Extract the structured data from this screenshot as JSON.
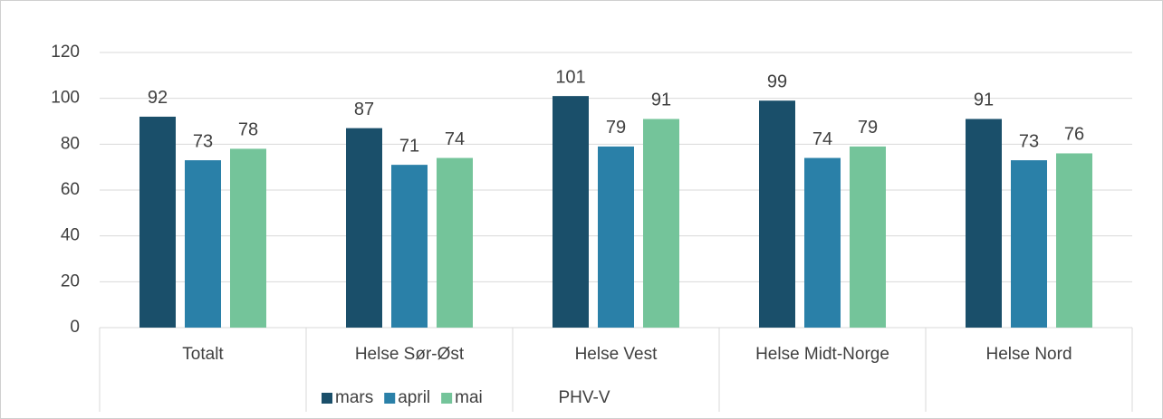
{
  "chart_data": {
    "type": "bar",
    "categories": [
      "Totalt",
      "Helse Sør-Øst",
      "Helse Vest",
      "Helse Midt-Norge",
      "Helse Nord"
    ],
    "series": [
      {
        "name": "mars",
        "color": "#1a4f6a",
        "values": [
          92,
          87,
          101,
          99,
          91
        ]
      },
      {
        "name": "april",
        "color": "#2a80a8",
        "values": [
          73,
          71,
          79,
          74,
          73
        ]
      },
      {
        "name": "mai",
        "color": "#74c49a",
        "values": [
          78,
          74,
          91,
          79,
          76
        ]
      }
    ],
    "x_label": "PHV-V",
    "ylim": [
      0,
      120
    ],
    "yticks": [
      0,
      20,
      40,
      60,
      80,
      100,
      120
    ],
    "grid": true,
    "legend": "bottom"
  }
}
